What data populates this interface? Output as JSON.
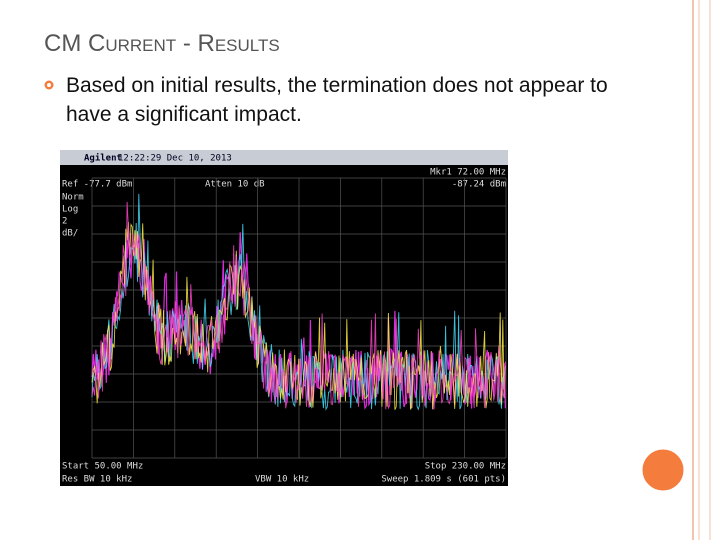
{
  "slide": {
    "title": "CM Current - Results",
    "bullets": [
      "Based on initial results, the termination does not appear to have a significant impact."
    ],
    "screenshot": {
      "brand": "Agilent",
      "timestamp": "12:22:29 Dec 10, 2013",
      "ref": "Ref -77.7 dBm",
      "atten": "Atten 10 dB",
      "marker": "Mkr1 72.00 MHz",
      "marker_level": "-87.24 dBm",
      "side_labels": [
        "Norm",
        "Log",
        "2",
        "dB/"
      ],
      "start": "Start 50.00 MHz",
      "stop": "Stop 230.00 MHz",
      "res_bw": "Res BW 10 kHz",
      "vbw": "VBW 10 kHz",
      "sweep": "Sweep 1.809 s (601 pts)"
    }
  }
}
